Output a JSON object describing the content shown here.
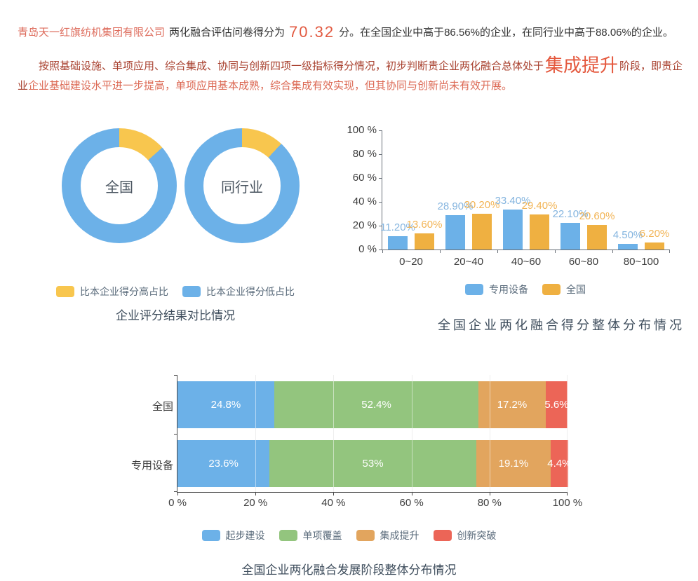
{
  "header": {
    "company": "青岛天一红旗纺机集团有限公司",
    "score_prefix": "两化融合评估问卷得分为",
    "score": "70.32",
    "score_suffix": "分。在全国企业中高于86.56%的企业，在同行业中高于88.06%的企业。",
    "analysis_part1": "按照基础设施、单项应用、综合集成、协同与创新四项一级指标得分情况，初步判断贵企业两化融合总体处于",
    "analysis_stage": "集成提升",
    "analysis_part2": "阶段，即贵企业",
    "analysis_part3": "企业基础建设水平进一步提高，单项应用基本成熟，综合集成有效实现，但其协同与创新尚未有效开展。"
  },
  "chart_data": [
    {
      "type": "pie",
      "subtype": "donut-pair",
      "title": "企业评分结果对比情况",
      "legend": [
        {
          "label": "比本企业得分高占比",
          "color": "#f8c64e"
        },
        {
          "label": "比本企业得分低占比",
          "color": "#6cb1e8"
        }
      ],
      "donuts": [
        {
          "label": "全国",
          "higher_pct": 13.44,
          "lower_pct": 86.56
        },
        {
          "label": "同行业",
          "higher_pct": 11.94,
          "lower_pct": 88.06
        }
      ]
    },
    {
      "type": "bar",
      "title": "全国企业两化融合得分整体分布情况",
      "categories": [
        "0~20",
        "20~40",
        "40~60",
        "60~80",
        "80~100"
      ],
      "series": [
        {
          "name": "专用设备",
          "color": "#6cb1e8",
          "label_color": "#85b5df",
          "values": [
            11.2,
            28.9,
            33.4,
            22.1,
            4.5
          ],
          "labels": [
            "11.20%",
            "28.90%",
            "33.40%",
            "22.10%",
            "4.50%"
          ]
        },
        {
          "name": "全国",
          "color": "#efb041",
          "label_color": "#f2b455",
          "values": [
            13.6,
            30.2,
            29.4,
            20.6,
            6.2
          ],
          "labels": [
            "13.60%",
            "30.20%",
            "29.40%",
            "20.60%",
            "6.20%"
          ]
        }
      ],
      "ylabels": [
        "100 %",
        "80 %",
        "60 %",
        "40 %",
        "20 %",
        "0 %"
      ],
      "ylim": [
        0,
        100
      ],
      "grid": false,
      "legend_position": "bottom"
    },
    {
      "type": "bar",
      "subtype": "horizontal-stacked",
      "title": "全国企业两化融合发展阶段整体分布情况",
      "categories": [
        "全国",
        "专用设备"
      ],
      "series": [
        {
          "name": "起步建设",
          "color": "#6cb1e8",
          "values": [
            24.8,
            23.6
          ],
          "labels": [
            "24.8%",
            "23.6%"
          ]
        },
        {
          "name": "单项覆盖",
          "color": "#93c57e",
          "values": [
            52.4,
            53
          ],
          "labels": [
            "52.4%",
            "53%"
          ]
        },
        {
          "name": "集成提升",
          "color": "#e2a55e",
          "values": [
            17.2,
            19.1
          ],
          "labels": [
            "17.2%",
            "19.1%"
          ]
        },
        {
          "name": "创新突破",
          "color": "#ec6557",
          "values": [
            5.6,
            4.4
          ],
          "labels": [
            "5.6%",
            "4.4%"
          ]
        }
      ],
      "xlabels": [
        "0 %",
        "20 %",
        "40 %",
        "60 %",
        "80 %",
        "100 %"
      ],
      "xlim": [
        0,
        100
      ],
      "grid": true,
      "legend_position": "bottom"
    }
  ]
}
